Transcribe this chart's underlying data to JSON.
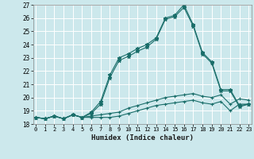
{
  "xlabel": "Humidex (Indice chaleur)",
  "bg_color": "#cce8ec",
  "grid_color": "#ffffff",
  "line_color": "#1a6e6a",
  "x_min": 0,
  "x_max": 23,
  "y_min": 18,
  "y_max": 27,
  "lines": [
    [
      18.5,
      18.4,
      18.6,
      18.4,
      18.7,
      18.5,
      18.5,
      18.5,
      18.5,
      18.6,
      18.8,
      19.0,
      19.2,
      19.4,
      19.5,
      19.6,
      19.7,
      19.8,
      19.6,
      19.5,
      19.7,
      19.0,
      19.5,
      19.5
    ],
    [
      18.5,
      18.4,
      18.6,
      18.4,
      18.7,
      18.5,
      18.6,
      18.7,
      18.8,
      18.9,
      19.2,
      19.4,
      19.6,
      19.8,
      20.0,
      20.1,
      20.2,
      20.3,
      20.1,
      20.0,
      20.2,
      19.5,
      19.9,
      19.8
    ],
    [
      18.5,
      18.4,
      18.6,
      18.4,
      18.7,
      18.5,
      18.8,
      19.5,
      21.5,
      22.8,
      23.1,
      23.5,
      23.8,
      24.4,
      25.9,
      26.1,
      26.8,
      25.4,
      23.3,
      22.6,
      20.5,
      20.5,
      19.3,
      19.5
    ],
    [
      18.5,
      18.4,
      18.6,
      18.4,
      18.7,
      18.5,
      18.9,
      19.7,
      21.7,
      23.0,
      23.3,
      23.7,
      24.0,
      24.5,
      26.0,
      26.2,
      27.0,
      25.5,
      23.4,
      22.7,
      20.6,
      20.6,
      19.4,
      19.5
    ]
  ]
}
